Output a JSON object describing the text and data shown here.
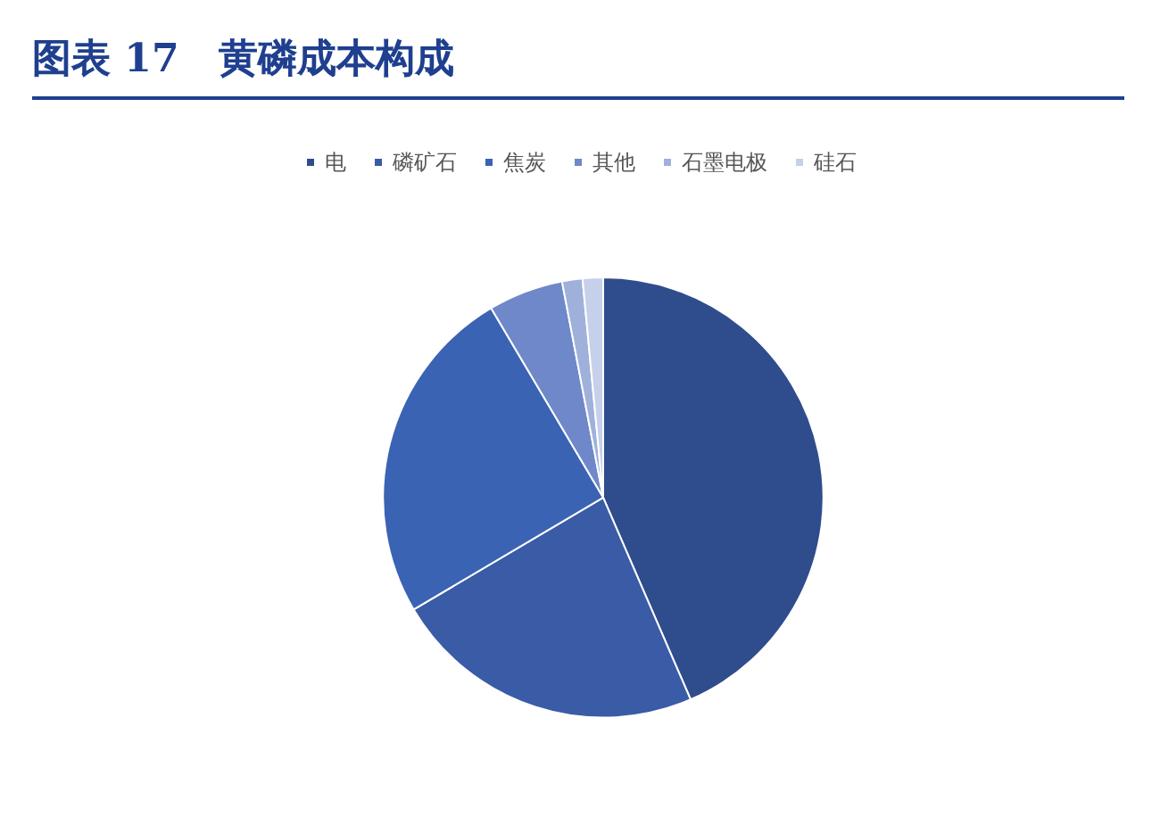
{
  "chart_data": {
    "type": "pie",
    "title": "图表 17　黄磷成本构成",
    "categories": [
      "电",
      "磷矿石",
      "焦炭",
      "其他",
      "石墨电极",
      "硅石"
    ],
    "values": [
      43.5,
      23,
      25,
      5.5,
      1.5,
      1.5
    ],
    "colors": [
      "#2f4d8c",
      "#3a5ba6",
      "#3b63b4",
      "#6e88c9",
      "#9fb1db",
      "#c6d0ea"
    ],
    "legend": "top"
  }
}
